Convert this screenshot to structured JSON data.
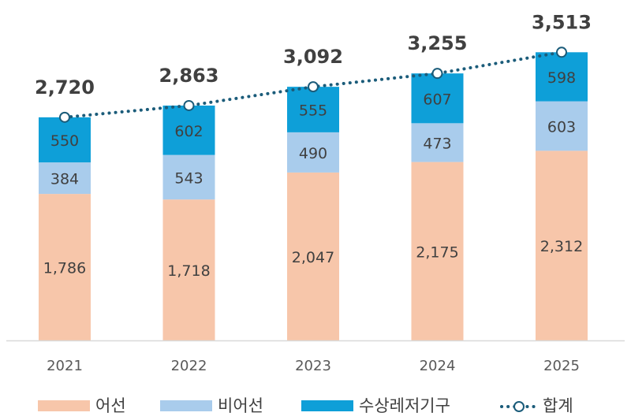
{
  "chart_data": {
    "type": "bar",
    "stacked": true,
    "categories": [
      "2021",
      "2022",
      "2023",
      "2024",
      "2025"
    ],
    "series": [
      {
        "name": "어선",
        "values": [
          1786,
          1718,
          2047,
          2175,
          2312
        ],
        "color": "#F7C6AA"
      },
      {
        "name": "비어선",
        "values": [
          384,
          543,
          490,
          473,
          603
        ],
        "color": "#A9CCEC"
      },
      {
        "name": "수상레저기구",
        "values": [
          550,
          602,
          555,
          607,
          598
        ],
        "color": "#0E9FD8"
      }
    ],
    "line_series": {
      "name": "합계",
      "values": [
        2720,
        2863,
        3092,
        3255,
        3513
      ],
      "color": "#1B5C7A",
      "style": "dotted-with-circle-markers"
    },
    "value_labels": {
      "segments": [
        [
          "1,786",
          "384",
          "550"
        ],
        [
          "1,718",
          "543",
          "602"
        ],
        [
          "2,047",
          "490",
          "555"
        ],
        [
          "2,175",
          "473",
          "607"
        ],
        [
          "2,312",
          "603",
          "598"
        ]
      ],
      "totals": [
        "2,720",
        "2,863",
        "3,092",
        "3,255",
        "3,513"
      ]
    },
    "title": "",
    "xlabel": "",
    "ylabel": "",
    "ylim": [
      0,
      4150
    ],
    "y_axis_visible": false,
    "grid": false,
    "legend_position": "bottom"
  }
}
